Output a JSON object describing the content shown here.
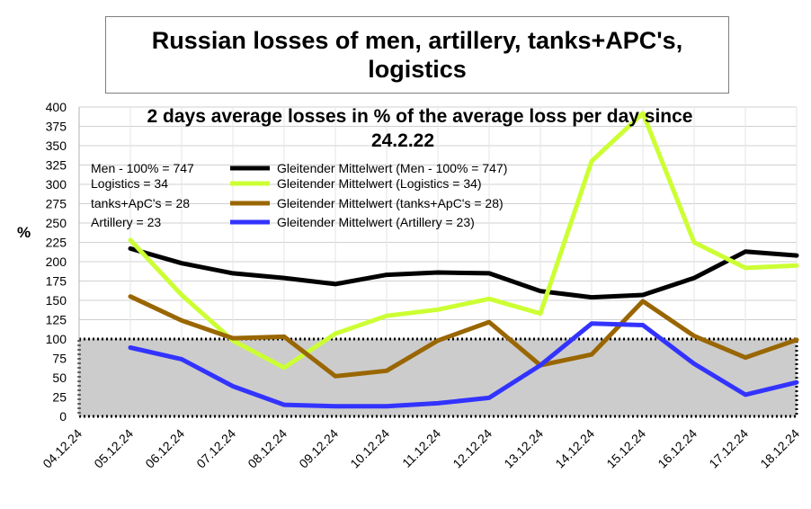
{
  "chart_data": {
    "type": "line",
    "title": "Russian losses of men, artillery, tanks+APC's, logistics",
    "subtitle_lines": [
      "2 days average losses in % of the average loss per day since",
      "24.2.22"
    ],
    "ylabel": "%",
    "xlabel": "",
    "ylim": [
      0,
      400
    ],
    "yticks": [
      0,
      25,
      50,
      75,
      100,
      125,
      150,
      175,
      200,
      225,
      250,
      275,
      300,
      325,
      350,
      375,
      400
    ],
    "grid": true,
    "categories": [
      "04.12.24",
      "05.12.24",
      "06.12.24",
      "07.12.24",
      "08.12.24",
      "09.12.24",
      "10.12.24",
      "11.12.24",
      "12.12.24",
      "13.12.24",
      "14.12.24",
      "15.12.24",
      "16.12.24",
      "17.12.24",
      "18.12.24"
    ],
    "reference_band": {
      "from": 0,
      "to": 100,
      "color": "#cccccc"
    },
    "baseline_notes": [
      "Men - 100% = 747",
      "Logistics = 34",
      "tanks+ApC's = 28",
      "Artillery  = 23"
    ],
    "series": [
      {
        "name": "Gleitender Mittelwert (Men - 100% = 747)",
        "color": "#000000",
        "values": [
          null,
          217,
          198,
          185,
          179,
          171,
          183,
          186,
          185,
          162,
          154,
          157,
          179,
          213,
          208
        ]
      },
      {
        "name": "Gleitender Mittelwert (Logistics = 34)",
        "color": "#ccff33",
        "values": [
          null,
          228,
          157,
          98,
          63,
          107,
          130,
          138,
          152,
          133,
          330,
          392,
          225,
          192,
          195
        ]
      },
      {
        "name": "Gleitender Mittelwert (tanks+ApC's = 28)",
        "color": "#996600",
        "values": [
          null,
          155,
          124,
          101,
          103,
          52,
          59,
          98,
          122,
          66,
          80,
          149,
          104,
          76,
          99
        ]
      },
      {
        "name": "Gleitender Mittelwert (Artillery  = 23)",
        "color": "#3333ff",
        "values": [
          null,
          89,
          74,
          39,
          15,
          13,
          13,
          17,
          24,
          66,
          120,
          118,
          68,
          28,
          44
        ]
      }
    ]
  }
}
